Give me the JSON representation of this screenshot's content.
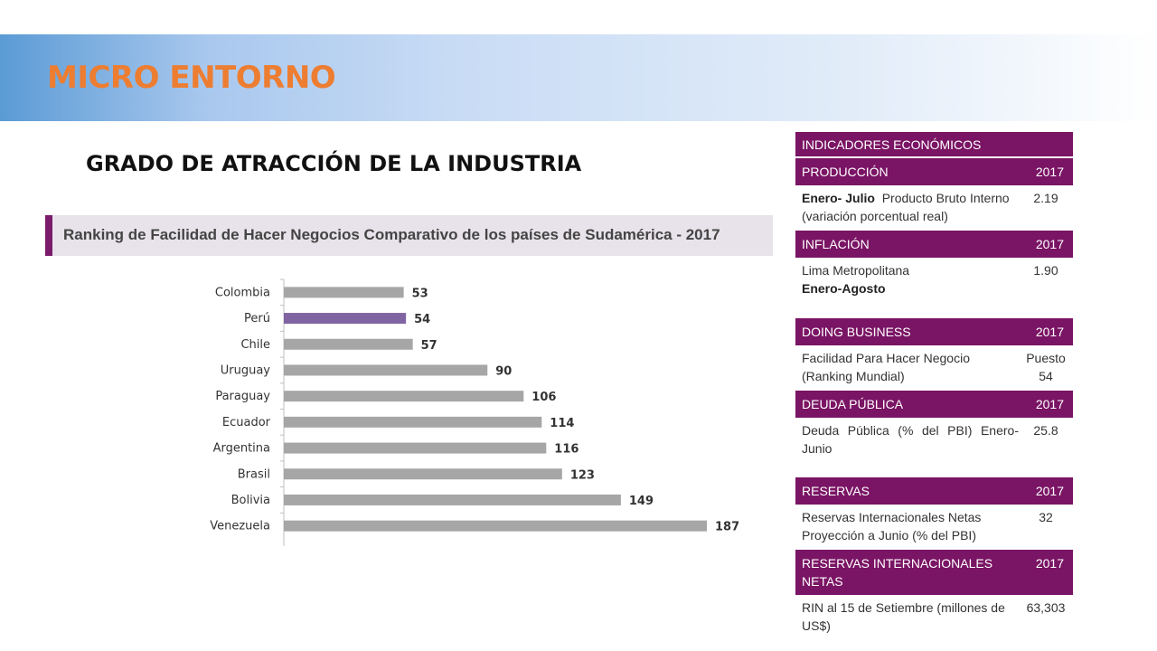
{
  "header": {
    "title": "MICRO ENTORNO"
  },
  "subtitle": "GRADO DE ATRACCIÓN DE LA INDUSTRIA",
  "chart_header": "Ranking de Facilidad de Hacer Negocios Comparativo de los países de Sudamérica - 2017",
  "chart_data": {
    "type": "bar",
    "orientation": "horizontal",
    "title": "Ranking de Facilidad de Hacer Negocios Comparativo de los países de Sudamérica - 2017",
    "categories": [
      "Colombia",
      "Perú",
      "Chile",
      "Uruguay",
      "Paraguay",
      "Ecuador",
      "Argentina",
      "Brasil",
      "Bolivia",
      "Venezuela"
    ],
    "values": [
      53,
      54,
      57,
      90,
      106,
      114,
      116,
      123,
      149,
      187
    ],
    "highlight": "Perú",
    "colors": {
      "bar": "#a6a6a6",
      "highlight": "#8064a2"
    },
    "xlim": [
      0,
      187
    ],
    "grid": false
  },
  "panel": {
    "title": "INDICADORES ECONÓMICOS",
    "sections": [
      {
        "label": "PRODUCCIÓN",
        "year": "2017",
        "desc_bold": "Enero- Julio",
        "desc": "Producto Bruto Interno (variación porcentual real)",
        "value": "2.19"
      },
      {
        "label": "INFLACIÓN",
        "year": "2017",
        "desc": "Lima Metropolitana",
        "desc_bold": "Enero-Agosto",
        "value": "1.90"
      },
      {
        "label": "DOING BUSINESS",
        "year": "2017",
        "desc": "Facilidad Para Hacer Negocio (Ranking Mundial)",
        "value_line1": "Puesto",
        "value_line2": "54"
      },
      {
        "label": "DEUDA PÚBLICA",
        "year": "2017",
        "desc": "Deuda Pública (% del PBI) Enero-Junio",
        "value": "25.8"
      },
      {
        "label": "RESERVAS",
        "year": "2017",
        "desc": "Reservas Internacionales Netas Proyección a Junio (% del PBI)",
        "value": "32"
      },
      {
        "label": "RESERVAS INTERNACIONALES NETAS",
        "year": "2017",
        "desc": "RIN al 15 de Setiembre (millones de US$)",
        "value": "63,303"
      }
    ]
  },
  "colors": {
    "title": "#ed7d31",
    "panel_header": "#7a1464",
    "chart_header_bar": "#7a1b6b"
  }
}
